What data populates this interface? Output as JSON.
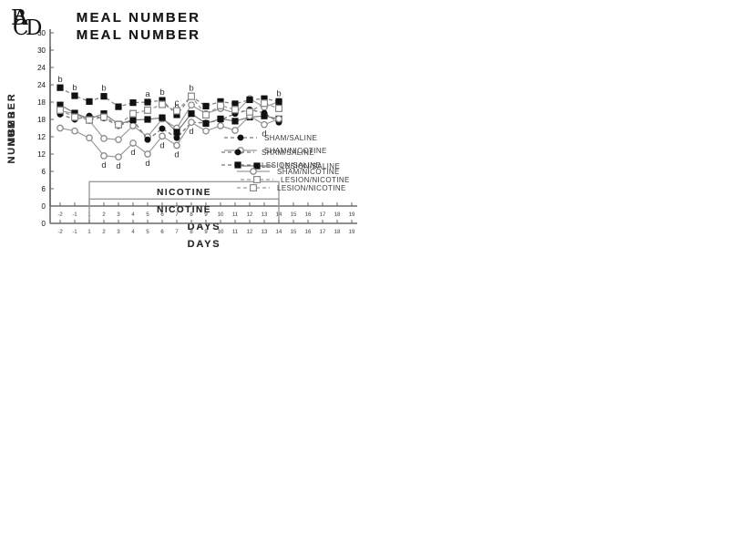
{
  "figure": {
    "name": "MEAL NUMBER four-panel line figure"
  },
  "chart_data": [
    {
      "type": "line",
      "panel": "A",
      "title": "MEAL NUMBER",
      "xlabel": "DAYS",
      "ylabel": "NUMBER",
      "ylim": [
        0,
        30
      ],
      "yticks": [
        0,
        6,
        12,
        18,
        24,
        30
      ],
      "xticklabels": [
        "-2",
        "-1",
        "1",
        "2",
        "3",
        "4",
        "5",
        "6",
        "7",
        "8",
        "9",
        "10",
        "11",
        "12",
        "13",
        "14",
        "15",
        "16",
        "17",
        "18",
        "19"
      ],
      "days": [
        -2,
        -1,
        1,
        2,
        3,
        4,
        5,
        6,
        7,
        8,
        9,
        10,
        11,
        12,
        13,
        14
      ],
      "grid": false,
      "legend_position": "lower-right",
      "treatment_box": {
        "label": "NICOTINE",
        "from_day": 1,
        "to_day": 14,
        "top_value": 4.2
      },
      "series": [
        {
          "name": "SHAM/SALINE",
          "marker": "filled-circle",
          "line": "dashed",
          "values": [
            15.9,
            15.0,
            15.6,
            15.2,
            13.9,
            14.9,
            11.5,
            13.4,
            11.8,
            14.5,
            14.4,
            14.9,
            16.0,
            16.7,
            16.1,
            14.5
          ],
          "annotations": []
        },
        {
          "name": "SHAM/NICOTINE",
          "marker": "open-circle",
          "line": "solid",
          "values": [
            16.5,
            16.0,
            14.8,
            11.7,
            11.5,
            13.9,
            12.0,
            15.1,
            13.5,
            17.5,
            16.0,
            16.9,
            16.1,
            18.6,
            17.1,
            18.1
          ],
          "annotations": []
        }
      ]
    },
    {
      "type": "line",
      "panel": "B",
      "title": "MEAL NUMBER",
      "xlabel": "DAYS",
      "ylabel": "NUMBER",
      "ylim": [
        0,
        30
      ],
      "yticks": [
        0,
        6,
        12,
        18,
        24,
        30
      ],
      "xticklabels": [
        "-2",
        "-1",
        "1",
        "2",
        "3",
        "4",
        "5",
        "6",
        "7",
        "8",
        "9",
        "10",
        "11",
        "12",
        "13",
        "14",
        "15",
        "16",
        "17",
        "18",
        "19"
      ],
      "days": [
        -2,
        -1,
        1,
        2,
        3,
        4,
        5,
        6,
        7,
        8,
        9,
        10,
        11,
        12,
        13,
        14
      ],
      "grid": false,
      "legend_position": "lower-right",
      "treatment_box": {
        "label": "NICOTINE",
        "from_day": 1,
        "to_day": 14,
        "top_value": 4.2
      },
      "series": [
        {
          "name": "SHAM/SALINE",
          "marker": "filled-circle",
          "line": "dashed",
          "values": [
            15.9,
            15.0,
            15.6,
            15.2,
            13.9,
            14.9,
            11.5,
            13.4,
            11.8,
            14.5,
            14.4,
            14.9,
            16.0,
            16.7,
            16.1,
            14.5
          ],
          "annotations": []
        },
        {
          "name": "LESION/SALINE",
          "marker": "filled-square",
          "line": "dashed",
          "values": [
            20.5,
            19.1,
            18.1,
            19.0,
            17.2,
            17.9,
            18.0,
            18.3,
            15.8,
            19.0,
            17.3,
            18.1,
            17.7,
            18.4,
            18.6,
            18.1
          ],
          "annotations": [
            {
              "day": -2,
              "label": "b",
              "position": "above"
            },
            {
              "day": -1,
              "label": "b",
              "position": "above"
            },
            {
              "day": 2,
              "label": "b",
              "position": "above"
            },
            {
              "day": 5,
              "label": "a",
              "position": "above"
            },
            {
              "day": 6,
              "label": "b",
              "position": "above"
            },
            {
              "day": 7,
              "label": "b",
              "position": "above"
            },
            {
              "day": 8,
              "label": "b",
              "position": "above"
            },
            {
              "day": 14,
              "label": "b",
              "position": "above"
            }
          ]
        }
      ]
    },
    {
      "type": "line",
      "panel": "C",
      "title": "MEAL NUMBER",
      "xlabel": "DAYS",
      "ylabel": "NUMBER",
      "ylim": [
        0,
        30
      ],
      "yticks": [
        0,
        6,
        12,
        18,
        24,
        30
      ],
      "xticklabels": [
        "-2",
        "-1",
        "1",
        "2",
        "3",
        "4",
        "5",
        "6",
        "7",
        "8",
        "9",
        "10",
        "11",
        "12",
        "13",
        "14",
        "15",
        "16",
        "17",
        "18",
        "19"
      ],
      "days": [
        -2,
        -1,
        1,
        2,
        3,
        4,
        5,
        6,
        7,
        8,
        9,
        10,
        11,
        12,
        13,
        14
      ],
      "grid": false,
      "legend_position": "lower-right",
      "treatment_box": {
        "label": "NICOTINE",
        "from_day": 1,
        "to_day": 14,
        "top_value": 4.2
      },
      "series": [
        {
          "name": "LESION/SALINE",
          "marker": "filled-square",
          "line": "solid",
          "values": [
            20.5,
            19.1,
            18.1,
            19.0,
            17.2,
            17.9,
            18.0,
            18.3,
            15.8,
            19.0,
            17.3,
            18.1,
            17.7,
            18.4,
            18.6,
            18.1
          ],
          "annotations": []
        },
        {
          "name": "LESION/NICOTINE",
          "marker": "open-square",
          "line": "dashed",
          "values": [
            19.6,
            18.4,
            17.9,
            18.4,
            17.1,
            19.0,
            19.6,
            20.6,
            19.5,
            22.0,
            18.8,
            20.4,
            19.7,
            19.3,
            20.8,
            19.9
          ],
          "annotations": [
            {
              "day": 7,
              "label": "c",
              "position": "above"
            }
          ]
        }
      ]
    },
    {
      "type": "line",
      "panel": "D",
      "title": "MEAL NUMBER",
      "xlabel": "DAYS",
      "ylabel": "NUMBER",
      "ylim": [
        0,
        30
      ],
      "yticks": [
        0,
        6,
        12,
        18,
        24,
        30
      ],
      "xticklabels": [
        "-2",
        "-1",
        "1",
        "2",
        "3",
        "4",
        "5",
        "6",
        "7",
        "8",
        "9",
        "10",
        "11",
        "12",
        "13",
        "14",
        "15",
        "16",
        "17",
        "18",
        "19"
      ],
      "days": [
        -2,
        -1,
        1,
        2,
        3,
        4,
        5,
        6,
        7,
        8,
        9,
        10,
        11,
        12,
        13,
        14
      ],
      "grid": false,
      "legend_position": "lower-right",
      "treatment_box": {
        "label": "NICOTINE",
        "from_day": 1,
        "to_day": 14,
        "top_value": 4.2
      },
      "series": [
        {
          "name": "SHAM/NICOTINE",
          "marker": "open-circle",
          "line": "solid",
          "values": [
            16.5,
            16.0,
            14.8,
            11.7,
            11.5,
            13.9,
            12.0,
            15.1,
            13.5,
            17.5,
            16.0,
            16.9,
            16.1,
            18.6,
            17.1,
            18.1
          ],
          "annotations": [
            {
              "day": 2,
              "label": "d",
              "position": "below"
            },
            {
              "day": 3,
              "label": "d",
              "position": "below"
            },
            {
              "day": 4,
              "label": "d",
              "position": "below"
            },
            {
              "day": 5,
              "label": "d",
              "position": "below"
            },
            {
              "day": 6,
              "label": "d",
              "position": "below"
            },
            {
              "day": 7,
              "label": "d",
              "position": "below"
            },
            {
              "day": 8,
              "label": "d",
              "position": "below"
            },
            {
              "day": 13,
              "label": "d",
              "position": "below"
            }
          ]
        },
        {
          "name": "LESION/NICOTINE",
          "marker": "open-square",
          "line": "dashed",
          "values": [
            19.6,
            18.4,
            17.9,
            18.4,
            17.1,
            19.0,
            19.6,
            20.6,
            19.5,
            22.0,
            18.8,
            20.4,
            19.7,
            19.3,
            20.8,
            19.9
          ],
          "annotations": []
        }
      ]
    }
  ]
}
